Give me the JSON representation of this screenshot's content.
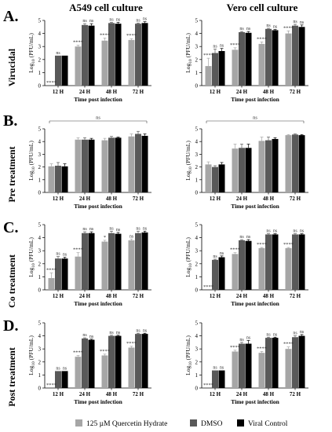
{
  "columns": [
    "A549 cell culture",
    "Vero cell culture"
  ],
  "rows": [
    {
      "letter": "A.",
      "label": "Virucidal"
    },
    {
      "letter": "B.",
      "label": "Pre treatment"
    },
    {
      "letter": "C.",
      "label": "Co treatment"
    },
    {
      "letter": "D.",
      "label": "Post treatment"
    }
  ],
  "legend": [
    {
      "label": "125 µM Quercetin Hydrate",
      "color": "#a6a6a6"
    },
    {
      "label": "DMSO",
      "color": "#595959"
    },
    {
      "label": "Viral Control",
      "color": "#000000"
    }
  ],
  "chart_data": [
    {
      "type": "bar",
      "panel": "A549 · Virucidal",
      "xlabel": "Time post infection",
      "ylabel": "Log10 (PFU/mL)",
      "ylim": [
        0,
        5
      ],
      "categories": [
        "12 H",
        "24 H",
        "48 H",
        "72 H"
      ],
      "series": [
        {
          "name": "125 µM Quercetin Hydrate",
          "values": [
            0,
            3.0,
            3.45,
            3.5
          ],
          "errors": [
            0,
            0.1,
            0.2,
            0.1
          ]
        },
        {
          "name": "DMSO",
          "values": [
            2.3,
            4.65,
            4.8,
            4.75
          ],
          "errors": [
            0,
            0.1,
            0.05,
            0.05
          ]
        },
        {
          "name": "Viral Control",
          "values": [
            2.3,
            4.6,
            4.75,
            4.8
          ],
          "errors": [
            0,
            0.15,
            0.1,
            0.1
          ]
        }
      ],
      "annotations": [
        [
          "****",
          "ns",
          "",
          ""
        ],
        [
          "****",
          "ns",
          "ns"
        ],
        [
          "****",
          "ns",
          "ns"
        ],
        [
          "****",
          "ns",
          "ns"
        ]
      ]
    },
    {
      "type": "bar",
      "panel": "Vero · Virucidal",
      "xlabel": "Time post infection",
      "ylabel": "Log10 (PFU/mL)",
      "ylim": [
        0,
        5
      ],
      "categories": [
        "12 H",
        "24 H",
        "48 H",
        "72 H"
      ],
      "series": [
        {
          "name": "125 µM Quercetin Hydrate",
          "values": [
            1.5,
            2.75,
            3.2,
            4.0
          ],
          "errors": [
            0.6,
            0.15,
            0.15,
            0.2
          ]
        },
        {
          "name": "DMSO",
          "values": [
            2.5,
            4.1,
            4.35,
            4.6
          ],
          "errors": [
            0.3,
            0.05,
            0.05,
            0.1
          ]
        },
        {
          "name": "Viral Control",
          "values": [
            2.65,
            4.05,
            4.25,
            4.5
          ],
          "errors": [
            0.2,
            0.1,
            0.05,
            0.15
          ]
        }
      ],
      "annotations": [
        [
          "****",
          "ns",
          "ns"
        ],
        [
          "****",
          "ns",
          "ns"
        ],
        [
          "****",
          "ns",
          "ns"
        ],
        [
          "****",
          "ns",
          "ns"
        ]
      ]
    },
    {
      "type": "bar",
      "panel": "A549 · Pre treatment",
      "xlabel": "Time post infection",
      "ylabel": "Log10 (PFU/mL)",
      "ylim": [
        0,
        5
      ],
      "categories": [
        "12 H",
        "24 H",
        "48 H",
        "72 H"
      ],
      "series": [
        {
          "name": "125 µM Quercetin Hydrate",
          "values": [
            2.05,
            4.15,
            4.1,
            4.4
          ],
          "errors": [
            0.2,
            0.15,
            0.15,
            0.2
          ]
        },
        {
          "name": "DMSO",
          "values": [
            2.1,
            4.15,
            4.3,
            4.6
          ],
          "errors": [
            0.25,
            0.15,
            0.1,
            0.2
          ]
        },
        {
          "name": "Viral Control",
          "values": [
            2.05,
            4.15,
            4.3,
            4.45
          ],
          "errors": [
            0.2,
            0.1,
            0.05,
            0.15
          ]
        }
      ],
      "annotations": [
        [
          "ns"
        ]
      ]
    },
    {
      "type": "bar",
      "panel": "Vero · Pre treatment",
      "xlabel": "Time post infection",
      "ylabel": "Log10 (PFU/mL)",
      "ylim": [
        0,
        5
      ],
      "categories": [
        "12 H",
        "24 H",
        "48 H",
        "72 H"
      ],
      "series": [
        {
          "name": "125 µM Quercetin Hydrate",
          "values": [
            2.2,
            3.45,
            4.05,
            4.5
          ],
          "errors": [
            0.2,
            0.35,
            0.3,
            0.05
          ]
        },
        {
          "name": "DMSO",
          "values": [
            2.0,
            3.5,
            4.1,
            4.55
          ],
          "errors": [
            0.1,
            0.3,
            0.25,
            0.05
          ]
        },
        {
          "name": "Viral Control",
          "values": [
            2.2,
            3.5,
            4.2,
            4.5
          ],
          "errors": [
            0.15,
            0.3,
            0.1,
            0.05
          ]
        }
      ],
      "annotations": [
        [
          "ns"
        ]
      ]
    },
    {
      "type": "bar",
      "panel": "A549 · Co treatment",
      "xlabel": "Time post infection",
      "ylabel": "Log10 (PFU/mL)",
      "ylim": [
        0,
        5
      ],
      "categories": [
        "12 H",
        "24 H",
        "48 H",
        "72 H"
      ],
      "series": [
        {
          "name": "125 µM Quercetin Hydrate",
          "values": [
            0.9,
            2.55,
            3.7,
            3.8
          ],
          "errors": [
            0.4,
            0.3,
            0.1,
            0.1
          ]
        },
        {
          "name": "DMSO",
          "values": [
            2.4,
            4.35,
            4.35,
            4.35
          ],
          "errors": [
            0.15,
            0.1,
            0.15,
            0.15
          ]
        },
        {
          "name": "Viral Control",
          "values": [
            2.4,
            4.35,
            4.3,
            4.4
          ],
          "errors": [
            0.1,
            0.1,
            0.1,
            0.1
          ]
        }
      ],
      "annotations": [
        [
          "****",
          "ns",
          "ns"
        ],
        [
          "****",
          "ns",
          "ns"
        ],
        [
          "*",
          "ns",
          "ns"
        ],
        [
          "ns",
          "ns",
          "ns"
        ]
      ]
    },
    {
      "type": "bar",
      "panel": "Vero · Co treatment",
      "xlabel": "Time post infection",
      "ylabel": "Log10 (PFU/mL)",
      "ylim": [
        0,
        5
      ],
      "categories": [
        "12 H",
        "24 H",
        "48 H",
        "72 H"
      ],
      "series": [
        {
          "name": "125 µM Quercetin Hydrate",
          "values": [
            0,
            2.75,
            3.2,
            3.2
          ],
          "errors": [
            0,
            0.1,
            0.05,
            0.05
          ]
        },
        {
          "name": "DMSO",
          "values": [
            2.3,
            3.8,
            4.25,
            4.25
          ],
          "errors": [
            0.05,
            0.05,
            0.05,
            0.05
          ]
        },
        {
          "name": "Viral Control",
          "values": [
            2.5,
            3.75,
            4.25,
            4.25
          ],
          "errors": [
            0.1,
            0.1,
            0.05,
            0.05
          ]
        }
      ],
      "annotations": [
        [
          "****",
          "ns",
          "ns"
        ],
        [
          "****",
          "ns",
          "ns"
        ],
        [
          "****",
          "ns",
          "ns"
        ],
        [
          "****",
          "ns",
          "ns"
        ]
      ]
    },
    {
      "type": "bar",
      "panel": "A549 · Post treatment",
      "xlabel": "Time post infection",
      "ylabel": "Log10 (PFU/mL)",
      "ylim": [
        0,
        5
      ],
      "categories": [
        "12 H",
        "24 H",
        "48 H",
        "72 H"
      ],
      "series": [
        {
          "name": "125 µM Quercetin Hydrate",
          "values": [
            0,
            2.4,
            2.5,
            3.1
          ],
          "errors": [
            0,
            0.1,
            0.1,
            0.1
          ]
        },
        {
          "name": "DMSO",
          "values": [
            1.3,
            3.8,
            4.0,
            4.15
          ],
          "errors": [
            0,
            0.05,
            0.05,
            0.05
          ]
        },
        {
          "name": "Viral Control",
          "values": [
            1.3,
            3.7,
            4.0,
            4.15
          ],
          "errors": [
            0,
            0.05,
            0.05,
            0.05
          ]
        }
      ],
      "annotations": [
        [
          "****",
          "ns",
          "ns"
        ],
        [
          "****",
          "ns",
          "ns"
        ],
        [
          "****",
          "ns",
          "ns"
        ],
        [
          "****",
          "ns",
          "ns"
        ]
      ]
    },
    {
      "type": "bar",
      "panel": "Vero · Post treatment",
      "xlabel": "Time post infection",
      "ylabel": "Log10 (PFU/mL)",
      "ylim": [
        0,
        5
      ],
      "categories": [
        "12 H",
        "24 H",
        "48 H",
        "72 H"
      ],
      "series": [
        {
          "name": "125 µM Quercetin Hydrate",
          "values": [
            0,
            2.8,
            2.7,
            3.0
          ],
          "errors": [
            0,
            0.1,
            0.1,
            0.15
          ]
        },
        {
          "name": "DMSO",
          "values": [
            1.35,
            3.4,
            3.85,
            3.9
          ],
          "errors": [
            0,
            0.1,
            0.05,
            0.1
          ]
        },
        {
          "name": "Viral Control",
          "values": [
            1.35,
            3.4,
            3.85,
            4.0
          ],
          "errors": [
            0,
            0.25,
            0.05,
            0.1
          ]
        }
      ],
      "annotations": [
        [
          "****",
          "ns",
          "ns"
        ],
        [
          "****",
          "ns",
          "ns"
        ],
        [
          "****",
          "ns",
          "ns"
        ],
        [
          "****",
          "ns",
          "ns"
        ]
      ]
    }
  ]
}
